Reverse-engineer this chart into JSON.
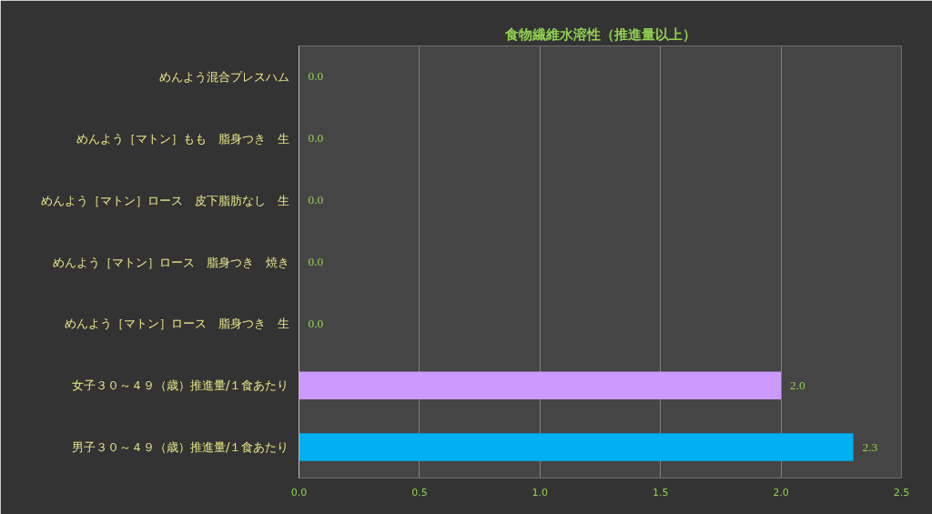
{
  "chart_data": {
    "type": "bar",
    "orientation": "horizontal",
    "title": "食物繊維水溶性（推進量以上）",
    "categories": [
      "めんよう混合プレスハム",
      "めんよう［マトン］もも　脂身つき　生",
      "めんよう［マトン］ロース　皮下脂肪なし　生",
      "めんよう［マトン］ロース　脂身つき　焼き",
      "めんよう［マトン］ロース　脂身つき　生",
      "女子３０～４９（歳）推進量/１食あたり",
      "男子３０～４９（歳）推進量/１食あたり"
    ],
    "values": [
      0,
      0,
      0,
      0,
      0,
      2.0,
      2.3
    ],
    "value_labels": [
      "0.0",
      "0.0",
      "0.0",
      "0.0",
      "0.0",
      "2.0",
      "2.3"
    ],
    "colors": [
      "#cc99ff",
      "#cc99ff",
      "#cc99ff",
      "#cc99ff",
      "#cc99ff",
      "#cc99ff",
      "#00b0f0"
    ],
    "xlim": [
      0,
      2.5
    ],
    "xticks": [
      {
        "value": 0,
        "label": "0.0"
      },
      {
        "value": 0.5,
        "label": "0.5"
      },
      {
        "value": 1,
        "label": "1.0"
      },
      {
        "value": 1.5,
        "label": "1.5"
      },
      {
        "value": 2,
        "label": "2.0"
      },
      {
        "value": 2.5,
        "label": "2.5"
      }
    ],
    "grid": "x"
  }
}
